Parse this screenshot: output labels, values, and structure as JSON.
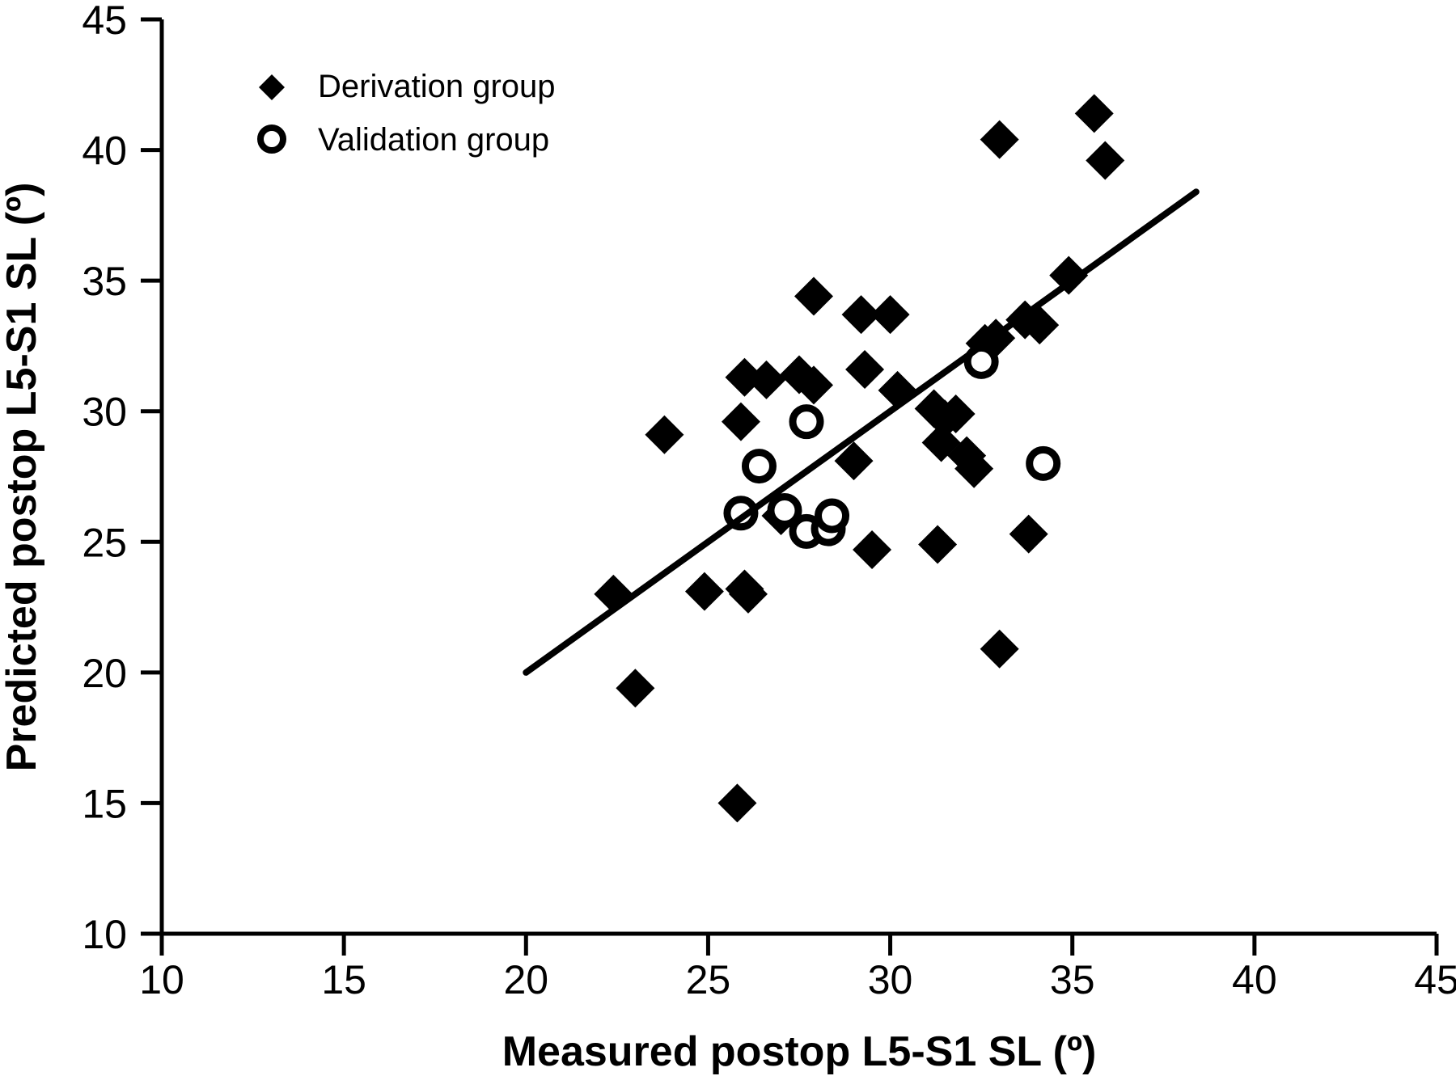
{
  "chart_data": {
    "type": "scatter",
    "xlabel": "Measured postop L5-S1 SL (º)",
    "ylabel": "Predicted postop L5-S1 SL (º)",
    "xlim": [
      10,
      45
    ],
    "ylim": [
      10,
      45
    ],
    "x_ticks": [
      10,
      15,
      20,
      25,
      30,
      35,
      40,
      45
    ],
    "y_ticks": [
      10,
      15,
      20,
      25,
      30,
      35,
      40,
      45
    ],
    "x_tick_labels": [
      "10",
      "15",
      "20",
      "25",
      "30",
      "35",
      "40",
      "45"
    ],
    "y_tick_labels": [
      "10",
      "15",
      "20",
      "25",
      "30",
      "35",
      "40",
      "45"
    ],
    "grid": false,
    "legend_position": "top-left",
    "series": [
      {
        "name": "Derivation group",
        "marker": "diamond",
        "color": "#000000",
        "points": [
          [
            22.4,
            23.0
          ],
          [
            23.0,
            19.4
          ],
          [
            23.8,
            29.1
          ],
          [
            24.9,
            23.1
          ],
          [
            25.8,
            15.0
          ],
          [
            25.9,
            29.6
          ],
          [
            26.0,
            31.3
          ],
          [
            26.0,
            23.2
          ],
          [
            26.1,
            23.0
          ],
          [
            26.6,
            31.2
          ],
          [
            27.0,
            26.0
          ],
          [
            27.5,
            31.4
          ],
          [
            27.9,
            31.0
          ],
          [
            27.9,
            34.4
          ],
          [
            29.0,
            28.1
          ],
          [
            29.2,
            33.7
          ],
          [
            29.3,
            31.6
          ],
          [
            29.5,
            24.7
          ],
          [
            30.0,
            33.7
          ],
          [
            30.2,
            30.8
          ],
          [
            31.2,
            30.1
          ],
          [
            31.3,
            24.9
          ],
          [
            31.4,
            28.8
          ],
          [
            31.5,
            29.7
          ],
          [
            31.8,
            29.9
          ],
          [
            32.1,
            28.3
          ],
          [
            32.3,
            27.8
          ],
          [
            32.6,
            32.6
          ],
          [
            32.9,
            32.8
          ],
          [
            33.0,
            40.4
          ],
          [
            33.0,
            20.9
          ],
          [
            33.7,
            33.5
          ],
          [
            33.8,
            25.3
          ],
          [
            34.1,
            33.3
          ],
          [
            34.9,
            35.2
          ],
          [
            35.6,
            41.4
          ],
          [
            35.9,
            39.6
          ]
        ]
      },
      {
        "name": "Validation group",
        "marker": "open-circle",
        "color": "#000000",
        "points": [
          [
            25.9,
            26.1
          ],
          [
            26.4,
            27.9
          ],
          [
            27.1,
            26.2
          ],
          [
            27.7,
            25.4
          ],
          [
            27.7,
            29.6
          ],
          [
            28.3,
            25.5
          ],
          [
            28.4,
            26.0
          ],
          [
            32.5,
            31.9
          ],
          [
            34.2,
            28.0
          ]
        ]
      }
    ],
    "regression_line": {
      "x": [
        20,
        38.4
      ],
      "y": [
        20,
        38.4
      ]
    }
  }
}
